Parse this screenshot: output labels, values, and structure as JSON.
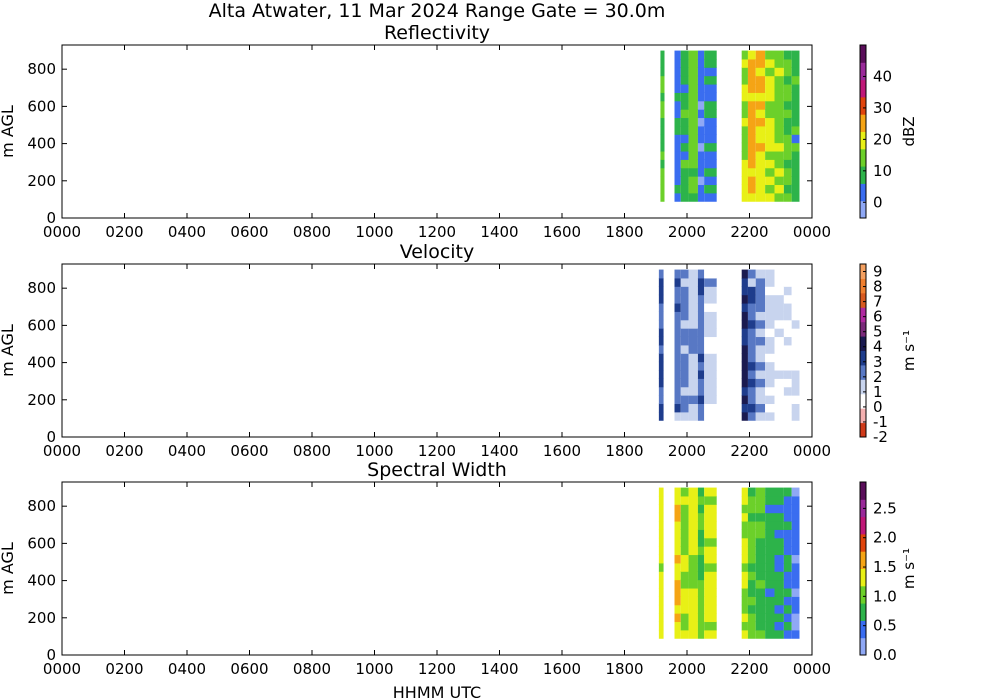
{
  "figure": {
    "title": "Alta Atwater, 11 Mar 2024 Range Gate = 30.0m",
    "xlabel": "HHMM UTC"
  },
  "chart_data": [
    {
      "type": "heatmap",
      "title": "Reflectivity",
      "ylabel": "m AGL",
      "xticks": [
        "0000",
        "0200",
        "0400",
        "0600",
        "0800",
        "1000",
        "1200",
        "1400",
        "1600",
        "1800",
        "2000",
        "2200",
        "0000"
      ],
      "yticks": [
        "0",
        "200",
        "400",
        "600",
        "800"
      ],
      "xlim_hours": [
        0,
        24
      ],
      "ylim": [
        0,
        930
      ],
      "colorbar": {
        "label": "dBZ",
        "ticks": [
          "0",
          "10",
          "20",
          "30",
          "40"
        ],
        "range": [
          -5,
          50
        ],
        "colors": [
          "#8fa8f5",
          "#3a6df0",
          "#2db34a",
          "#6cd02a",
          "#e8f016",
          "#f5a415",
          "#e0440c",
          "#c01878",
          "#9a2a9a",
          "#5a0e5a"
        ]
      },
      "bands": [
        {
          "t0": 19.15,
          "t1": 19.28,
          "v": 12
        },
        {
          "t0": 19.6,
          "t1": 19.8,
          "v": 4
        },
        {
          "t0": 19.8,
          "t1": 20.05,
          "v": 9
        },
        {
          "t0": 20.05,
          "t1": 20.35,
          "v": 14
        },
        {
          "t0": 20.35,
          "t1": 20.55,
          "v": 2
        },
        {
          "t0": 20.55,
          "t1": 20.95,
          "v": 6
        },
        {
          "t0": 21.75,
          "t1": 21.95,
          "v": 17
        },
        {
          "t0": 21.95,
          "t1": 22.2,
          "v": 25
        },
        {
          "t0": 22.2,
          "t1": 22.5,
          "v": 22
        },
        {
          "t0": 22.5,
          "t1": 22.8,
          "v": 18
        },
        {
          "t0": 22.8,
          "t1": 23.1,
          "v": 15
        },
        {
          "t0": 23.1,
          "t1": 23.35,
          "v": 12
        },
        {
          "t0": 23.35,
          "t1": 23.6,
          "v": 9
        }
      ]
    },
    {
      "type": "heatmap",
      "title": "Velocity",
      "ylabel": "m AGL",
      "xticks": [
        "0000",
        "0200",
        "0400",
        "0600",
        "0800",
        "1000",
        "1200",
        "1400",
        "1600",
        "1800",
        "2000",
        "2200",
        "0000"
      ],
      "yticks": [
        "0",
        "200",
        "400",
        "600",
        "800"
      ],
      "xlim_hours": [
        0,
        24
      ],
      "ylim": [
        0,
        930
      ],
      "colorbar": {
        "label": "m s⁻¹",
        "ticks": [
          "-2",
          "-1",
          "0",
          "1",
          "2",
          "3",
          "4",
          "5",
          "6",
          "7",
          "8",
          "9"
        ],
        "range": [
          -2,
          9.5
        ],
        "colors": [
          "#d03a1a",
          "#f4b0b0",
          "#ffffff",
          "#c8d4ee",
          "#5878c4",
          "#1e3c8c",
          "#1a1a50",
          "#7a2a7a",
          "#b02aa0",
          "#d85a20",
          "#f08030",
          "#f4a060"
        ]
      },
      "bands": [
        {
          "t0": 19.1,
          "t1": 19.25,
          "v": 3
        },
        {
          "t0": 19.6,
          "t1": 19.8,
          "v": 2.5
        },
        {
          "t0": 19.8,
          "t1": 20.05,
          "v": 2
        },
        {
          "t0": 20.05,
          "t1": 20.35,
          "v": 1.5
        },
        {
          "t0": 20.35,
          "t1": 20.55,
          "v": 2.5
        },
        {
          "t0": 20.55,
          "t1": 20.95,
          "v": 1.2
        },
        {
          "t0": 21.75,
          "t1": 21.95,
          "v": 3.5
        },
        {
          "t0": 21.95,
          "t1": 22.2,
          "v": 2.5
        },
        {
          "t0": 22.2,
          "t1": 22.5,
          "v": 1.5
        },
        {
          "t0": 22.5,
          "t1": 22.8,
          "v": 1
        },
        {
          "t0": 22.8,
          "t1": 23.1,
          "v": 0.8
        },
        {
          "t0": 23.1,
          "t1": 23.35,
          "v": 0.6
        },
        {
          "t0": 23.35,
          "t1": 23.6,
          "v": 0.5
        }
      ]
    },
    {
      "type": "heatmap",
      "title": "Spectral Width",
      "ylabel": "m AGL",
      "xticks": [
        "0000",
        "0200",
        "0400",
        "0600",
        "0800",
        "1000",
        "1200",
        "1400",
        "1600",
        "1800",
        "2000",
        "2200",
        "0000"
      ],
      "yticks": [
        "0",
        "200",
        "400",
        "600",
        "800"
      ],
      "xlim_hours": [
        0,
        24
      ],
      "ylim": [
        0,
        930
      ],
      "colorbar": {
        "label": "m s⁻¹",
        "ticks": [
          "0.0",
          "0.5",
          "1.0",
          "1.5",
          "2.0",
          "2.5"
        ],
        "range": [
          0,
          2.95
        ],
        "colors": [
          "#8fa8f5",
          "#3a6df0",
          "#2db34a",
          "#6cd02a",
          "#e8f016",
          "#f5a415",
          "#e0440c",
          "#c01878",
          "#9a2a9a",
          "#5a0e5a"
        ]
      },
      "bands": [
        {
          "t0": 19.1,
          "t1": 19.25,
          "v": 1.3
        },
        {
          "t0": 19.6,
          "t1": 19.8,
          "v": 1.4
        },
        {
          "t0": 19.8,
          "t1": 20.05,
          "v": 1.1
        },
        {
          "t0": 20.05,
          "t1": 20.35,
          "v": 1.3
        },
        {
          "t0": 20.35,
          "t1": 20.55,
          "v": 0.9
        },
        {
          "t0": 20.55,
          "t1": 20.95,
          "v": 1.2
        },
        {
          "t0": 21.75,
          "t1": 21.95,
          "v": 1.2
        },
        {
          "t0": 21.95,
          "t1": 22.2,
          "v": 0.9
        },
        {
          "t0": 22.2,
          "t1": 22.5,
          "v": 0.8
        },
        {
          "t0": 22.5,
          "t1": 22.8,
          "v": 0.7
        },
        {
          "t0": 22.8,
          "t1": 23.1,
          "v": 0.6
        },
        {
          "t0": 23.1,
          "t1": 23.35,
          "v": 0.5
        },
        {
          "t0": 23.35,
          "t1": 23.6,
          "v": 0.4
        }
      ]
    }
  ]
}
